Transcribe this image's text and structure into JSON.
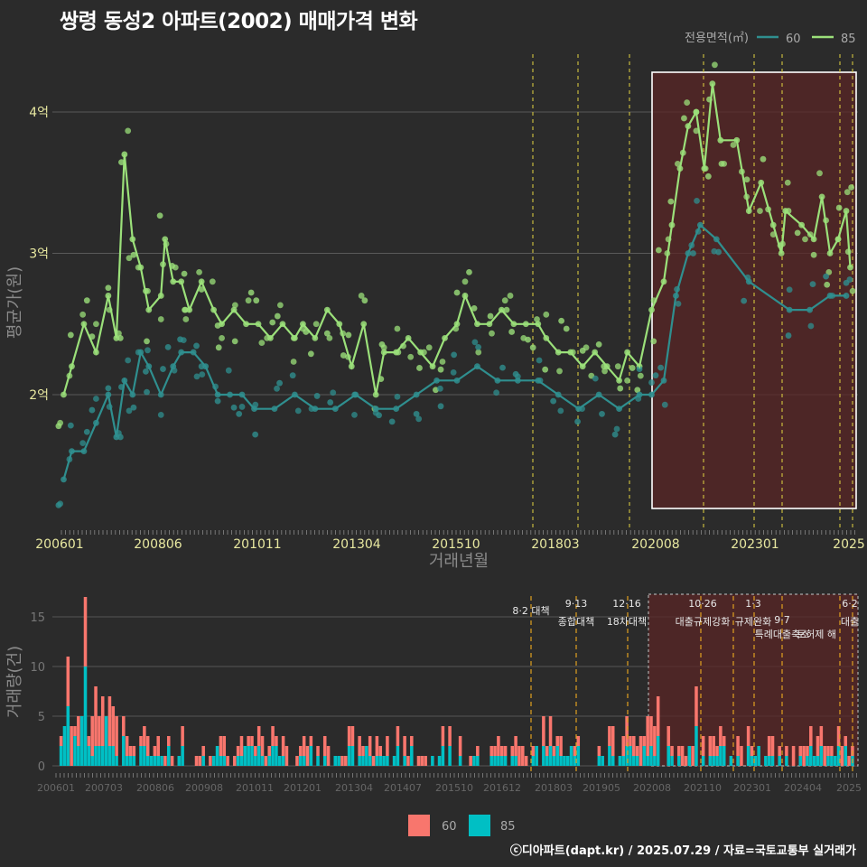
{
  "title": "쌍령 동성2 아파트(2002) 매매가격 변화",
  "footer": "ⓒ디아파트(dapt.kr) / 2025.07.29 / 자료=국토교통부 실거래가",
  "colors": {
    "s60": "#2f8f8f",
    "s85": "#9be07a",
    "bar60": "#f8766d",
    "bar85": "#00bfc4",
    "vline": "#d4c640",
    "vline2": "#e0a020",
    "box": "#ffffff",
    "shade": "#5a2525"
  },
  "legend": {
    "title": "전용면적(㎡)",
    "items": [
      "60",
      "85"
    ]
  },
  "chart_data": [
    {
      "type": "line",
      "title": "쌍령 동성2 아파트(2002) 매매가격 변화",
      "xlabel": "거래년월",
      "ylabel": "평균가(원)",
      "x_ticks": [
        "200601",
        "200806",
        "201011",
        "201304",
        "201510",
        "201803",
        "202008",
        "202301",
        "2025"
      ],
      "y_ticks": [
        "2억",
        "3억",
        "4억"
      ],
      "ylim": [
        1.1,
        4.35
      ],
      "xlim": [
        2006.0,
        2025.6
      ],
      "series": [
        {
          "name": "85",
          "values": [
            [
              2006.1,
              2.0
            ],
            [
              2006.3,
              2.2
            ],
            [
              2006.6,
              2.5
            ],
            [
              2006.9,
              2.3
            ],
            [
              2007.2,
              2.7
            ],
            [
              2007.4,
              2.4
            ],
            [
              2007.6,
              3.7
            ],
            [
              2007.8,
              3.1
            ],
            [
              2008.0,
              2.9
            ],
            [
              2008.2,
              2.6
            ],
            [
              2008.5,
              2.7
            ],
            [
              2008.6,
              3.1
            ],
            [
              2008.8,
              2.8
            ],
            [
              2009.0,
              2.8
            ],
            [
              2009.2,
              2.6
            ],
            [
              2009.5,
              2.8
            ],
            [
              2009.8,
              2.6
            ],
            [
              2010.0,
              2.5
            ],
            [
              2010.3,
              2.6
            ],
            [
              2010.6,
              2.5
            ],
            [
              2010.9,
              2.5
            ],
            [
              2011.2,
              2.4
            ],
            [
              2011.5,
              2.5
            ],
            [
              2011.8,
              2.4
            ],
            [
              2012.0,
              2.5
            ],
            [
              2012.3,
              2.4
            ],
            [
              2012.6,
              2.6
            ],
            [
              2012.9,
              2.5
            ],
            [
              2013.2,
              2.2
            ],
            [
              2013.5,
              2.5
            ],
            [
              2013.8,
              2.0
            ],
            [
              2014.0,
              2.3
            ],
            [
              2014.3,
              2.3
            ],
            [
              2014.6,
              2.4
            ],
            [
              2014.9,
              2.3
            ],
            [
              2015.2,
              2.2
            ],
            [
              2015.5,
              2.4
            ],
            [
              2015.8,
              2.5
            ],
            [
              2016.0,
              2.7
            ],
            [
              2016.3,
              2.5
            ],
            [
              2016.6,
              2.5
            ],
            [
              2016.9,
              2.6
            ],
            [
              2017.2,
              2.5
            ],
            [
              2017.5,
              2.5
            ],
            [
              2017.8,
              2.5
            ],
            [
              2018.0,
              2.4
            ],
            [
              2018.3,
              2.3
            ],
            [
              2018.6,
              2.3
            ],
            [
              2018.9,
              2.2
            ],
            [
              2019.2,
              2.3
            ],
            [
              2019.5,
              2.2
            ],
            [
              2019.8,
              2.1
            ],
            [
              2020.0,
              2.3
            ],
            [
              2020.3,
              2.2
            ],
            [
              2020.6,
              2.6
            ],
            [
              2020.9,
              2.8
            ],
            [
              2021.1,
              3.2
            ],
            [
              2021.3,
              3.6
            ],
            [
              2021.5,
              3.9
            ],
            [
              2021.7,
              4.0
            ],
            [
              2021.9,
              3.6
            ],
            [
              2022.1,
              4.2
            ],
            [
              2022.3,
              3.8
            ],
            [
              2022.7,
              3.8
            ],
            [
              2023.0,
              3.3
            ],
            [
              2023.3,
              3.5
            ],
            [
              2023.6,
              3.2
            ],
            [
              2023.8,
              3.0
            ],
            [
              2023.9,
              3.3
            ],
            [
              2024.3,
              3.2
            ],
            [
              2024.6,
              3.1
            ],
            [
              2024.8,
              3.4
            ],
            [
              2025.0,
              3.0
            ],
            [
              2025.2,
              3.1
            ],
            [
              2025.4,
              3.3
            ],
            [
              2025.5,
              2.9
            ]
          ]
        },
        {
          "name": "60",
          "values": [
            [
              2006.1,
              1.4
            ],
            [
              2006.3,
              1.6
            ],
            [
              2006.6,
              1.6
            ],
            [
              2006.9,
              1.8
            ],
            [
              2007.2,
              2.0
            ],
            [
              2007.4,
              1.7
            ],
            [
              2007.6,
              2.1
            ],
            [
              2007.8,
              2.0
            ],
            [
              2008.0,
              2.3
            ],
            [
              2008.2,
              2.2
            ],
            [
              2008.5,
              2.0
            ],
            [
              2008.8,
              2.2
            ],
            [
              2009.0,
              2.3
            ],
            [
              2009.3,
              2.3
            ],
            [
              2009.6,
              2.2
            ],
            [
              2009.9,
              2.0
            ],
            [
              2010.2,
              2.0
            ],
            [
              2010.5,
              2.0
            ],
            [
              2010.8,
              1.9
            ],
            [
              2011.3,
              1.9
            ],
            [
              2011.8,
              2.0
            ],
            [
              2012.3,
              1.9
            ],
            [
              2012.8,
              1.9
            ],
            [
              2013.3,
              2.0
            ],
            [
              2013.8,
              1.9
            ],
            [
              2014.3,
              1.9
            ],
            [
              2014.8,
              2.0
            ],
            [
              2015.3,
              2.1
            ],
            [
              2015.8,
              2.1
            ],
            [
              2016.3,
              2.2
            ],
            [
              2016.8,
              2.1
            ],
            [
              2017.3,
              2.1
            ],
            [
              2017.8,
              2.1
            ],
            [
              2018.3,
              2.0
            ],
            [
              2018.8,
              1.9
            ],
            [
              2019.3,
              2.0
            ],
            [
              2019.8,
              1.9
            ],
            [
              2020.3,
              2.0
            ],
            [
              2020.6,
              2.0
            ],
            [
              2020.9,
              2.1
            ],
            [
              2021.2,
              2.7
            ],
            [
              2021.5,
              3.0
            ],
            [
              2021.8,
              3.2
            ],
            [
              2022.2,
              3.1
            ],
            [
              2023.0,
              2.8
            ],
            [
              2024.0,
              2.6
            ],
            [
              2024.5,
              2.6
            ],
            [
              2025.0,
              2.7
            ],
            [
              2025.4,
              2.7
            ]
          ]
        }
      ]
    },
    {
      "type": "bar",
      "ylabel": "거래량(건)",
      "x_ticks": [
        "200601",
        "200703",
        "200806",
        "200908",
        "201011",
        "201201",
        "201304",
        "201407",
        "201510",
        "201612",
        "201803",
        "201905",
        "202008",
        "202110",
        "202301",
        "202404",
        "2025"
      ],
      "y_ticks": [
        "0",
        "5",
        "10",
        "15"
      ],
      "ylim": [
        0,
        17
      ],
      "legend": [
        "60",
        "85"
      ],
      "peak": {
        "x": "200703",
        "value": 17
      },
      "annotations": [
        {
          "date": "8·2",
          "label": "대책"
        },
        {
          "date": "9·13",
          "label": "종합대책"
        },
        {
          "date": "12·16",
          "label": "18차대책"
        },
        {
          "date": "10·26",
          "label": "대출규제강화"
        },
        {
          "date": "1·3",
          "label": "규제완화"
        },
        {
          "date": "9·7",
          "label": "특례대출축소"
        },
        {
          "date": "",
          "label": "토허제 해"
        },
        {
          "date": "6·2",
          "label": "대출"
        }
      ]
    }
  ]
}
